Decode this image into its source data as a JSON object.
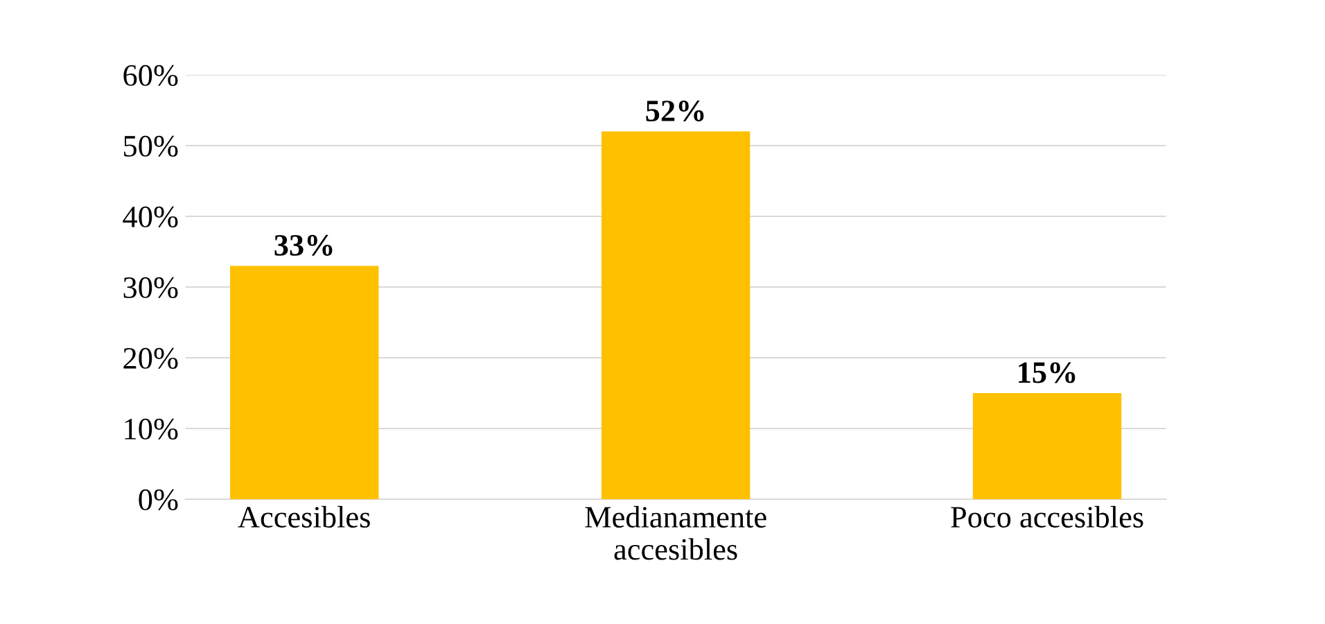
{
  "chart_data": {
    "type": "bar",
    "categories": [
      "Accesibles",
      "Medianamente\naccesibles",
      "Poco accesibles"
    ],
    "values": [
      33,
      52,
      15
    ],
    "value_labels": [
      "33%",
      "52%",
      "15%"
    ],
    "color": "#ffc000",
    "ylim": [
      0,
      60
    ],
    "yticks": [
      {
        "value": 0,
        "label": "0%"
      },
      {
        "value": 10,
        "label": "10%"
      },
      {
        "value": 20,
        "label": "20%"
      },
      {
        "value": 30,
        "label": "30%"
      },
      {
        "value": 40,
        "label": "40%"
      },
      {
        "value": 50,
        "label": "50%"
      },
      {
        "value": 60,
        "label": "60%"
      }
    ],
    "grid": "y",
    "legend": false
  }
}
